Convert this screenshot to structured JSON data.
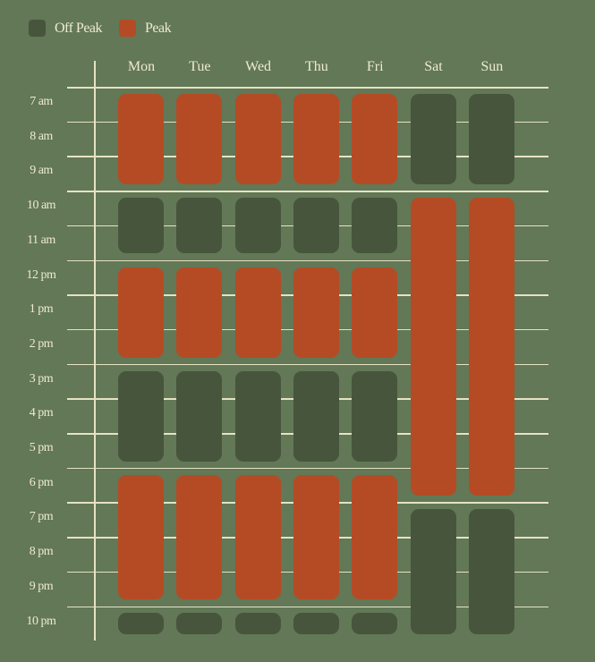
{
  "colors": {
    "background": "#627856",
    "off_peak": "#47553c",
    "peak": "#b54b24",
    "text": "#f0ead2"
  },
  "legend": [
    {
      "label": "Off Peak",
      "key": "off_peak"
    },
    {
      "label": "Peak",
      "key": "peak"
    }
  ],
  "chart_data": {
    "type": "heatmap",
    "days": [
      "Mon",
      "Tue",
      "Wed",
      "Thu",
      "Fri",
      "Sat",
      "Sun"
    ],
    "hours": [
      "7 am",
      "8 am",
      "9 am",
      "10 am",
      "11 am",
      "12 pm",
      "1 pm",
      "2 pm",
      "3 pm",
      "4 pm",
      "5 pm",
      "6 pm",
      "7 pm",
      "8 pm",
      "9 pm",
      "10 pm"
    ],
    "schedule": {
      "weekday": [
        {
          "start": "7 am",
          "end": "9 am",
          "type": "peak"
        },
        {
          "start": "10 am",
          "end": "11 am",
          "type": "off_peak"
        },
        {
          "start": "12 pm",
          "end": "2 pm",
          "type": "peak"
        },
        {
          "start": "3 pm",
          "end": "5 pm",
          "type": "off_peak"
        },
        {
          "start": "6 pm",
          "end": "9 pm",
          "type": "peak"
        },
        {
          "start": "10 pm",
          "end": "10 pm",
          "type": "off_peak"
        }
      ],
      "weekend": [
        {
          "start": "7 am",
          "end": "9 am",
          "type": "off_peak"
        },
        {
          "start": "10 am",
          "end": "6 pm",
          "type": "peak"
        },
        {
          "start": "7 pm",
          "end": "10 pm",
          "type": "off_peak"
        }
      ]
    },
    "weekday_days": [
      "Mon",
      "Tue",
      "Wed",
      "Thu",
      "Fri"
    ],
    "weekend_days": [
      "Sat",
      "Sun"
    ]
  }
}
